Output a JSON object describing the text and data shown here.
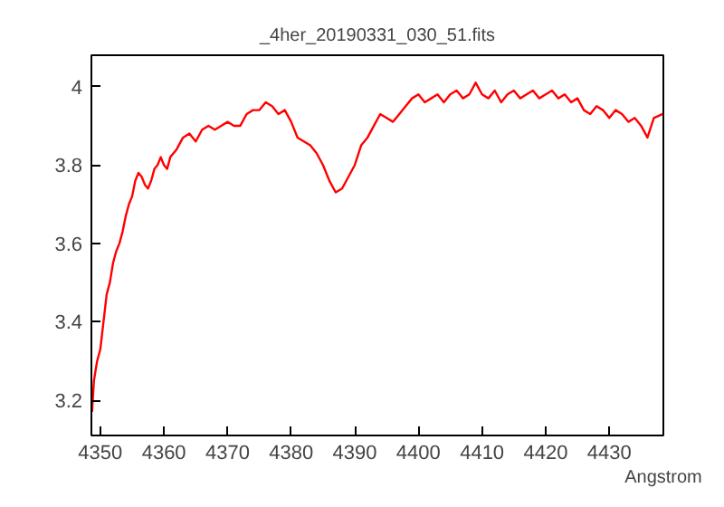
{
  "chart_data": {
    "type": "line",
    "title": "_4her_20190331_030_51.fits",
    "xlabel": "Angstrom",
    "x": [
      4348.7,
      4349,
      4349.5,
      4350,
      4350.5,
      4351,
      4351.5,
      4352,
      4352.5,
      4353,
      4353.5,
      4354,
      4354.5,
      4355,
      4355.5,
      4356,
      4356.5,
      4357,
      4357.5,
      4358,
      4358.5,
      4359,
      4359.5,
      4360,
      4360.5,
      4361,
      4362,
      4363,
      4364,
      4365,
      4366,
      4367,
      4368,
      4369,
      4370,
      4371,
      4372,
      4373,
      4374,
      4375,
      4376,
      4377,
      4378,
      4379,
      4380,
      4381,
      4382,
      4383,
      4384,
      4385,
      4386,
      4387,
      4388,
      4389,
      4390,
      4391,
      4392,
      4393,
      4394,
      4395,
      4396,
      4397,
      4398,
      4399,
      4400,
      4401,
      4402,
      4403,
      4404,
      4405,
      4406,
      4407,
      4408,
      4409,
      4410,
      4411,
      4412,
      4413,
      4414,
      4415,
      4416,
      4417,
      4418,
      4419,
      4420,
      4421,
      4422,
      4423,
      4424,
      4425,
      4426,
      4427,
      4428,
      4429,
      4430,
      4431,
      4432,
      4433,
      4434,
      4435,
      4436,
      4437,
      4438.4
    ],
    "series": [
      {
        "color": "#ff0000",
        "values": [
          3.17,
          3.25,
          3.3,
          3.33,
          3.4,
          3.47,
          3.5,
          3.55,
          3.58,
          3.6,
          3.63,
          3.67,
          3.7,
          3.72,
          3.76,
          3.78,
          3.77,
          3.75,
          3.74,
          3.76,
          3.79,
          3.8,
          3.82,
          3.8,
          3.79,
          3.82,
          3.84,
          3.87,
          3.88,
          3.86,
          3.89,
          3.9,
          3.89,
          3.9,
          3.91,
          3.9,
          3.9,
          3.93,
          3.94,
          3.94,
          3.96,
          3.95,
          3.93,
          3.94,
          3.91,
          3.87,
          3.86,
          3.85,
          3.83,
          3.8,
          3.76,
          3.73,
          3.74,
          3.77,
          3.8,
          3.85,
          3.87,
          3.9,
          3.93,
          3.92,
          3.91,
          3.93,
          3.95,
          3.97,
          3.98,
          3.96,
          3.97,
          3.98,
          3.96,
          3.98,
          3.99,
          3.97,
          3.98,
          4.01,
          3.98,
          3.97,
          3.99,
          3.96,
          3.98,
          3.99,
          3.97,
          3.98,
          3.99,
          3.97,
          3.98,
          3.99,
          3.97,
          3.98,
          3.96,
          3.97,
          3.94,
          3.93,
          3.95,
          3.94,
          3.92,
          3.94,
          3.93,
          3.91,
          3.92,
          3.9,
          3.87,
          3.92,
          3.93
        ]
      }
    ],
    "xlim": [
      4348.6,
      4438.5
    ],
    "ylim": [
      3.11,
      4.08
    ],
    "xticks": [
      4350,
      4360,
      4370,
      4380,
      4390,
      4400,
      4410,
      4420,
      4430
    ],
    "yticks": [
      3.2,
      3.4,
      3.6,
      3.8,
      4
    ],
    "grid": false,
    "marker": "none",
    "line_style": "solid"
  }
}
